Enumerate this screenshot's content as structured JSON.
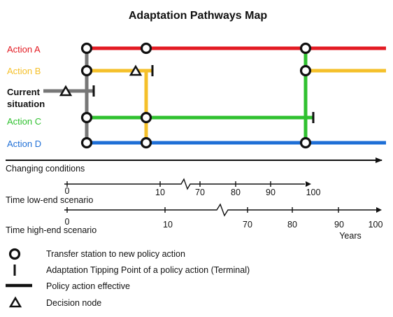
{
  "title": "Adaptation Pathways Map",
  "actions": [
    {
      "id": "action-a",
      "label": "Action A",
      "color": "#e31b23"
    },
    {
      "id": "action-b",
      "label": "Action B",
      "color": "#f5c02a"
    },
    {
      "id": "action-c",
      "label": "Action C",
      "color": "#2fc12f"
    },
    {
      "id": "action-d",
      "label": "Action D",
      "color": "#1f6fd6"
    }
  ],
  "current": {
    "label_line1": "Current",
    "label_line2": "situation",
    "color": "#777777"
  },
  "changing_conditions": "Changing conditions",
  "low_end": {
    "label": "Time low-end scenario",
    "ticks": [
      "0",
      "10",
      "70",
      "80",
      "90",
      "100"
    ]
  },
  "high_end": {
    "label": "Time high-end scenario",
    "ticks": [
      "0",
      "10",
      "70",
      "80",
      "90",
      "100"
    ],
    "unit": "Years"
  },
  "legend": [
    {
      "symbol": "circle",
      "label": "Transfer station to new policy action"
    },
    {
      "symbol": "terminal",
      "label": "Adaptation Tipping Point of a policy action (Terminal)"
    },
    {
      "symbol": "bar",
      "label": "Policy action effective"
    },
    {
      "symbol": "triangle",
      "label": "Decision node"
    }
  ]
}
